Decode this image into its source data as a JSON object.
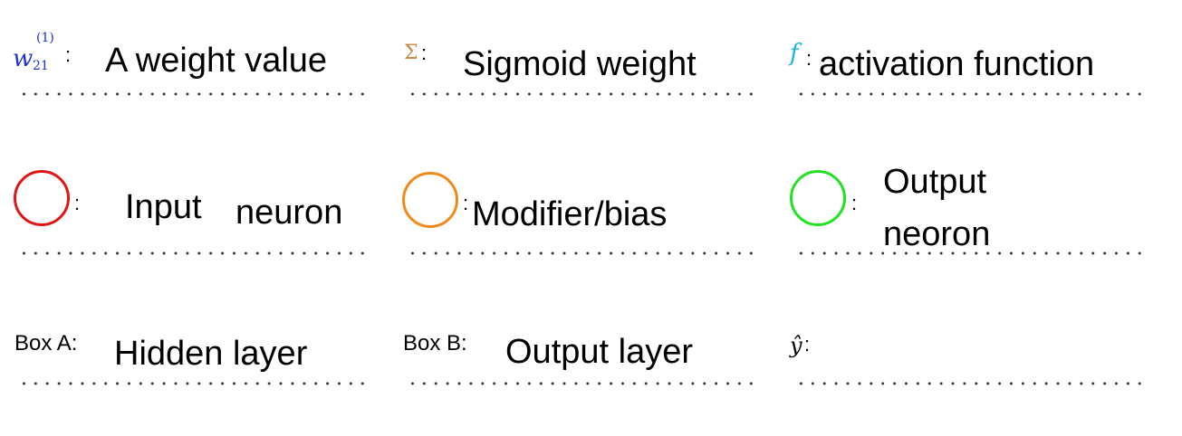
{
  "colors": {
    "weight_symbol": "#1f2fd6",
    "sigma_symbol": "#c8884a",
    "f_symbol": "#1ab0e0",
    "input_neuron": "#e01515",
    "bias_neuron": "#f08a1a",
    "output_neuron": "#22e022"
  },
  "legend": {
    "weight": {
      "symbol_base": "w",
      "symbol_sup": "(1)",
      "symbol_sub": "21",
      "colon": ":",
      "answer": "A weight value"
    },
    "sigma": {
      "symbol": "Σ",
      "colon": ":",
      "answer": "Sigmoid weight"
    },
    "f": {
      "symbol": "f",
      "colon": ":",
      "answer": "activation function"
    },
    "input_neuron": {
      "icon": "red-circle",
      "colon": ":",
      "answer_part1": "Input",
      "answer_part2": "neuron"
    },
    "bias": {
      "icon": "orange-circle",
      "colon": ":",
      "answer": "Modifier/bias"
    },
    "output_neuron": {
      "icon": "green-circle",
      "colon": ":",
      "answer_line1": "Output",
      "answer_line2": "neoron"
    },
    "box_a": {
      "label": "Box A",
      "colon": ":",
      "answer": "Hidden layer"
    },
    "box_b": {
      "label": "Box B",
      "colon": ":",
      "answer": "Output layer"
    },
    "y_hat": {
      "symbol": "ŷ",
      "colon": ":",
      "answer": ""
    }
  }
}
